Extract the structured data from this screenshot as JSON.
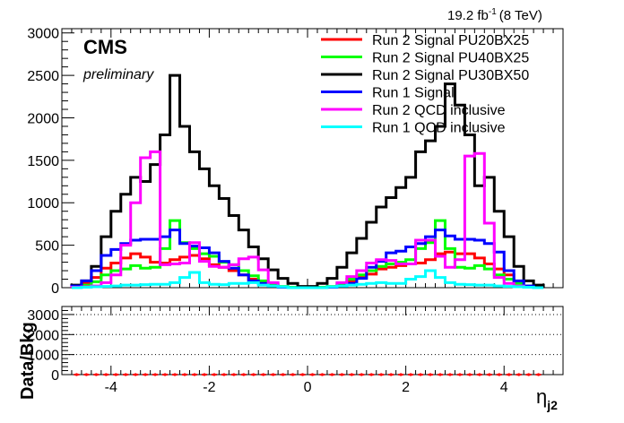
{
  "header": {
    "lumi_value": "19.2 fb",
    "lumi_exp": "-1",
    "lumi_energy": "(8 TeV)"
  },
  "labels": {
    "experiment": "CMS",
    "status": "preliminary",
    "xlabel_main": "η",
    "xlabel_sub": "j2",
    "ratio_ylabel": "Data/Bkg"
  },
  "chart_data": [
    {
      "type": "line",
      "style": "step-histogram",
      "x_edges": [
        -4.8,
        -4.6,
        -4.4,
        -4.2,
        -4.0,
        -3.8,
        -3.6,
        -3.4,
        -3.2,
        -3.0,
        -2.8,
        -2.6,
        -2.4,
        -2.2,
        -2.0,
        -1.8,
        -1.6,
        -1.4,
        -1.2,
        -1.0,
        -0.8,
        -0.6,
        -0.4,
        -0.2,
        0.0,
        0.2,
        0.4,
        0.6,
        0.8,
        1.0,
        1.2,
        1.4,
        1.6,
        1.8,
        2.0,
        2.2,
        2.4,
        2.6,
        2.8,
        3.0,
        3.2,
        3.4,
        3.6,
        3.8,
        4.0,
        4.2,
        4.4,
        4.6,
        4.8
      ],
      "xlim": [
        -5.0,
        5.2
      ],
      "ylim": [
        0,
        3050
      ],
      "ytick_labels": [
        "0",
        "500",
        "1000",
        "1500",
        "2000",
        "2500",
        "3000"
      ],
      "xtick_labels": [
        "-4",
        "-2",
        "0",
        "2",
        "4"
      ],
      "legend_position": "top-right",
      "series": [
        {
          "name": "Run 2 Signal PU20BX25",
          "color": "#ff0000",
          "values": [
            20,
            50,
            120,
            230,
            290,
            350,
            400,
            360,
            300,
            290,
            330,
            360,
            380,
            340,
            270,
            240,
            200,
            150,
            100,
            60,
            30,
            10,
            5,
            0,
            0,
            5,
            10,
            30,
            70,
            120,
            160,
            220,
            240,
            260,
            280,
            290,
            330,
            400,
            420,
            400,
            400,
            350,
            280,
            220,
            150,
            60,
            20,
            0
          ]
        },
        {
          "name": "Run 2 Signal PU40BX25",
          "color": "#00ff00",
          "values": [
            10,
            30,
            70,
            150,
            200,
            220,
            260,
            230,
            240,
            460,
            790,
            530,
            460,
            400,
            370,
            300,
            270,
            200,
            140,
            80,
            40,
            15,
            5,
            0,
            0,
            5,
            15,
            50,
            100,
            150,
            200,
            250,
            280,
            300,
            330,
            460,
            530,
            790,
            460,
            240,
            230,
            260,
            220,
            150,
            100,
            50,
            20,
            0
          ]
        },
        {
          "name": "Run 2 Signal PU30BX50",
          "color": "#000000",
          "values": [
            30,
            80,
            250,
            600,
            900,
            1100,
            1300,
            1250,
            1450,
            1800,
            2500,
            1900,
            1600,
            1400,
            1200,
            1050,
            850,
            680,
            480,
            340,
            210,
            110,
            50,
            15,
            15,
            50,
            110,
            240,
            410,
            580,
            770,
            950,
            1060,
            1180,
            1300,
            1600,
            1730,
            1900,
            2400,
            2150,
            1800,
            1200,
            1300,
            900,
            600,
            250,
            80,
            30
          ]
        },
        {
          "name": "Run 1 Signal",
          "color": "#0000ff",
          "values": [
            20,
            80,
            200,
            380,
            450,
            520,
            560,
            570,
            570,
            600,
            680,
            520,
            490,
            470,
            410,
            310,
            230,
            150,
            80,
            50,
            20,
            5,
            0,
            0,
            0,
            0,
            5,
            20,
            50,
            110,
            240,
            310,
            410,
            430,
            480,
            520,
            600,
            680,
            610,
            570,
            570,
            560,
            520,
            420,
            200,
            80,
            20,
            0
          ]
        },
        {
          "name": "Run 2 QCD inclusive",
          "color": "#ff00ff",
          "values": [
            5,
            10,
            20,
            60,
            150,
            500,
            1000,
            1530,
            1600,
            270,
            280,
            290,
            530,
            310,
            250,
            240,
            270,
            340,
            360,
            210,
            60,
            10,
            0,
            0,
            0,
            0,
            10,
            60,
            130,
            200,
            290,
            330,
            320,
            280,
            280,
            560,
            560,
            370,
            240,
            330,
            1550,
            1580,
            760,
            120,
            50,
            20,
            5,
            0
          ]
        },
        {
          "name": "Run 1 QCD inclusive",
          "color": "#00ffff",
          "values": [
            0,
            5,
            10,
            15,
            20,
            30,
            30,
            35,
            40,
            40,
            60,
            120,
            180,
            60,
            40,
            35,
            50,
            50,
            60,
            30,
            20,
            10,
            0,
            0,
            0,
            0,
            10,
            20,
            30,
            40,
            50,
            60,
            50,
            50,
            100,
            130,
            200,
            120,
            60,
            40,
            35,
            30,
            30,
            20,
            15,
            10,
            5,
            0
          ]
        }
      ]
    },
    {
      "type": "scatter",
      "style": "ratio-panel",
      "x": [
        -4.7,
        -4.5,
        -4.3,
        -4.1,
        -3.9,
        -3.7,
        -3.5,
        -3.3,
        -3.1,
        -2.9,
        -2.7,
        -2.5,
        -2.3,
        -2.1,
        -1.9,
        -1.7,
        -1.5,
        -1.3,
        -1.1,
        -0.9,
        -0.7,
        -0.5,
        -0.3,
        -0.1,
        0.1,
        0.3,
        0.5,
        0.7,
        0.9,
        1.1,
        1.3,
        1.5,
        1.7,
        1.9,
        2.1,
        2.3,
        2.5,
        2.7,
        2.9,
        3.1,
        3.3,
        3.5,
        3.7,
        3.9,
        4.1,
        4.3,
        4.5,
        4.7
      ],
      "y": [
        0,
        0,
        0,
        0,
        0,
        0,
        0,
        0,
        0,
        0,
        0,
        0,
        0,
        0,
        0,
        0,
        0,
        0,
        0,
        0,
        0,
        0,
        0,
        0,
        0,
        0,
        0,
        0,
        0,
        0,
        0,
        0,
        0,
        0,
        0,
        0,
        0,
        0,
        0,
        0,
        0,
        0,
        0,
        0,
        0,
        0,
        0,
        0
      ],
      "color": "#ff0000",
      "ylim": [
        0,
        3400
      ],
      "ytick_labels": [
        "0",
        "1000",
        "2000",
        "3000"
      ],
      "xtick_labels": [
        "-4",
        "-2",
        "0",
        "2",
        "4"
      ],
      "grid_y": [
        1000,
        2000,
        3000
      ]
    }
  ]
}
